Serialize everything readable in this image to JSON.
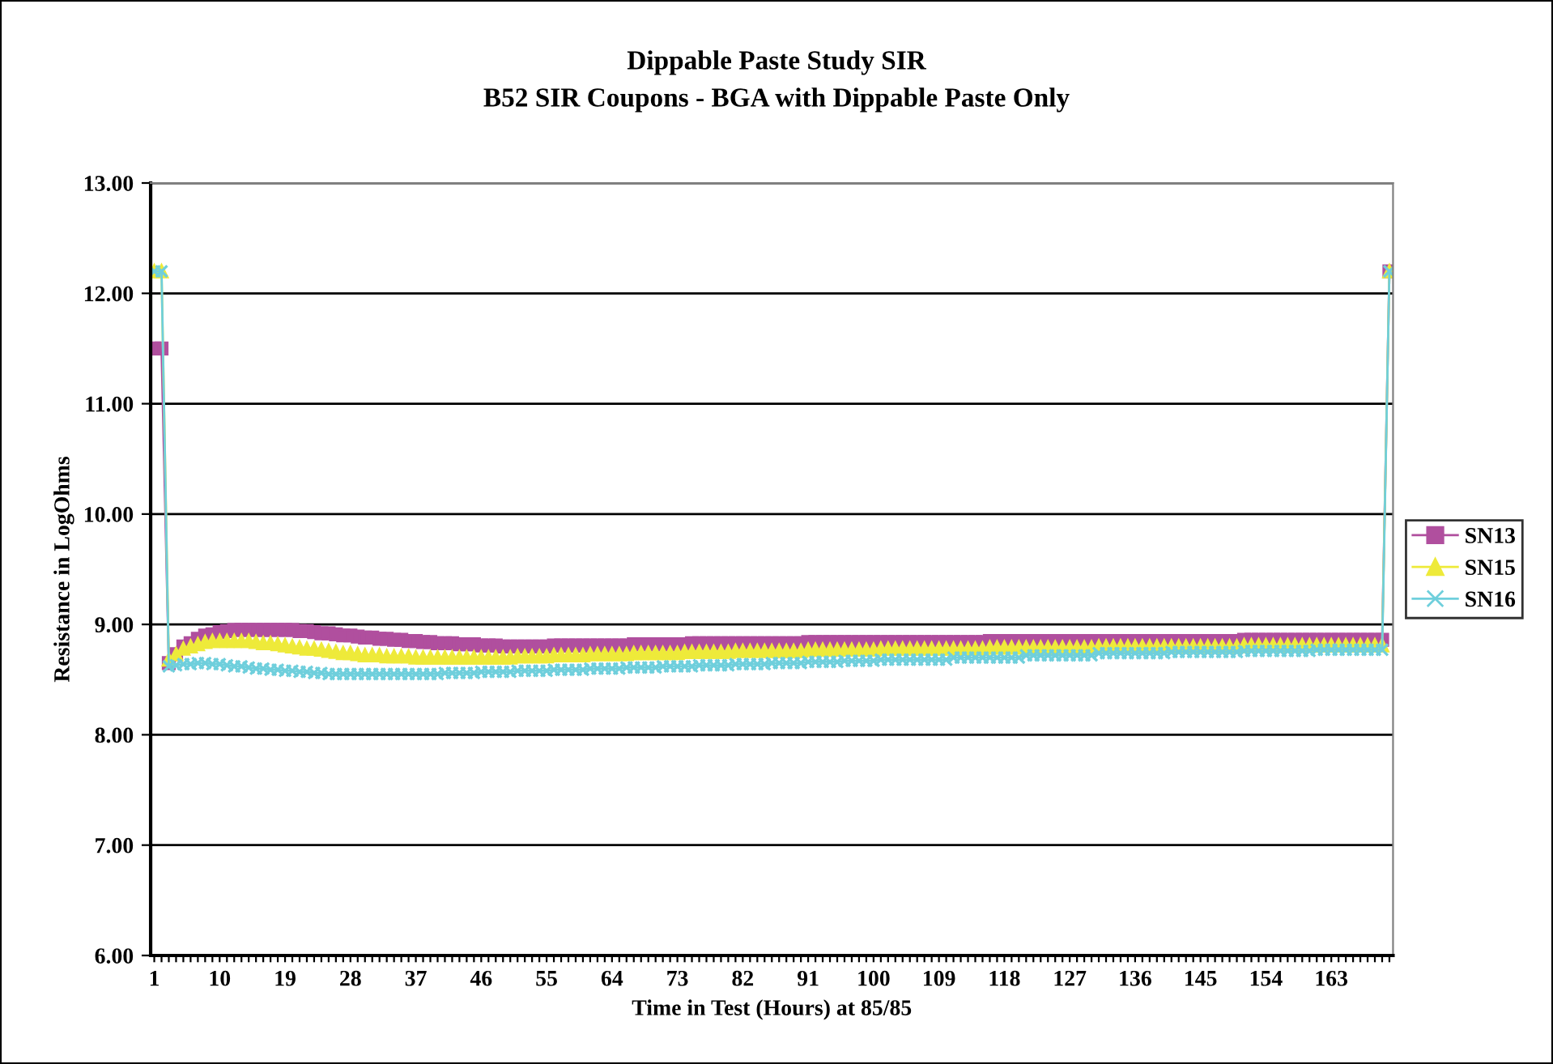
{
  "chart_data": {
    "type": "line",
    "title": "Dippable Paste Study SIR",
    "subtitle": "B52 SIR Coupons - BGA with Dippable Paste Only",
    "xlabel": "Time in Test (Hours) at 85/85",
    "ylabel": "Resistance in LogOhms",
    "categories": [
      "1",
      null,
      null,
      null,
      null,
      null,
      null,
      null,
      null,
      "10",
      null,
      null,
      null,
      null,
      null,
      null,
      null,
      null,
      "19",
      null,
      null,
      null,
      null,
      null,
      null,
      null,
      null,
      "28",
      null,
      null,
      null,
      null,
      null,
      null,
      null,
      null,
      "37",
      null,
      null,
      null,
      null,
      null,
      null,
      null,
      null,
      "46",
      null,
      null,
      null,
      null,
      null,
      null,
      null,
      null,
      "55",
      null,
      null,
      null,
      null,
      null,
      null,
      null,
      null,
      "64",
      null,
      null,
      null,
      null,
      null,
      null,
      null,
      null,
      "73",
      null,
      null,
      null,
      null,
      null,
      null,
      null,
      null,
      "82",
      null,
      null,
      null,
      null,
      null,
      null,
      null,
      null,
      "91",
      null,
      null,
      null,
      null,
      null,
      null,
      null,
      null,
      "100",
      null,
      null,
      null,
      null,
      null,
      null,
      null,
      null,
      "109",
      null,
      null,
      null,
      null,
      null,
      null,
      null,
      null,
      "118",
      null,
      null,
      null,
      null,
      null,
      null,
      null,
      null,
      "127",
      null,
      null,
      null,
      null,
      null,
      null,
      null,
      null,
      "136",
      null,
      null,
      null,
      null,
      null,
      null,
      null,
      null,
      "145",
      null,
      null,
      null,
      null,
      null,
      null,
      null,
      null,
      "154",
      null,
      null,
      null,
      null,
      null,
      null,
      null,
      null,
      "163",
      null,
      null,
      null,
      null,
      null,
      null,
      null,
      null
    ],
    "series": [
      {
        "name": "SN13",
        "color": "#b04f9e",
        "marker": "square",
        "values": [
          11.5,
          11.5,
          8.65,
          8.73,
          8.8,
          8.83,
          8.87,
          8.9,
          8.91,
          8.93,
          8.94,
          8.95,
          8.95,
          8.95,
          8.95,
          8.95,
          8.95,
          8.95,
          8.95,
          8.95,
          8.94,
          8.94,
          8.93,
          8.92,
          8.92,
          8.91,
          8.9,
          8.9,
          8.89,
          8.88,
          8.88,
          8.87,
          8.87,
          8.86,
          8.86,
          8.85,
          8.85,
          8.84,
          8.84,
          8.83,
          8.83,
          8.83,
          8.82,
          8.82,
          8.82,
          8.81,
          8.81,
          8.81,
          8.8,
          8.8,
          8.8,
          8.8,
          8.8,
          8.8,
          8.8,
          8.81,
          8.81,
          8.81,
          8.81,
          8.81,
          8.81,
          8.81,
          8.81,
          8.81,
          8.81,
          8.81,
          8.82,
          8.82,
          8.82,
          8.82,
          8.82,
          8.82,
          8.82,
          8.82,
          8.83,
          8.83,
          8.83,
          8.83,
          8.83,
          8.83,
          8.83,
          8.83,
          8.83,
          8.83,
          8.83,
          8.83,
          8.83,
          8.83,
          8.83,
          8.83,
          8.84,
          8.84,
          8.84,
          8.84,
          8.84,
          8.84,
          8.84,
          8.84,
          8.84,
          8.84,
          8.84,
          8.84,
          8.84,
          8.84,
          8.84,
          8.84,
          8.84,
          8.84,
          8.84,
          8.84,
          8.84,
          8.84,
          8.84,
          8.84,
          8.84,
          8.85,
          8.85,
          8.85,
          8.85,
          8.85,
          8.85,
          8.85,
          8.85,
          8.85,
          8.85,
          8.85,
          8.85,
          8.85,
          8.85,
          8.85,
          8.85,
          8.85,
          8.85,
          8.85,
          8.85,
          8.85,
          8.85,
          8.85,
          8.85,
          8.85,
          8.85,
          8.85,
          8.85,
          8.85,
          8.85,
          8.85,
          8.85,
          8.85,
          8.85,
          8.85,
          8.86,
          8.86,
          8.86,
          8.86,
          8.86,
          8.86,
          8.86,
          8.86,
          8.86,
          8.86,
          8.86,
          8.86,
          8.86,
          8.86,
          8.86,
          8.86,
          8.86,
          8.86,
          8.86,
          8.86,
          12.2
        ]
      },
      {
        "name": "SN15",
        "color": "#eeea3a",
        "marker": "triangle",
        "values": [
          12.2,
          12.2,
          8.68,
          8.73,
          8.78,
          8.8,
          8.82,
          8.84,
          8.85,
          8.85,
          8.85,
          8.85,
          8.85,
          8.85,
          8.84,
          8.83,
          8.83,
          8.82,
          8.81,
          8.8,
          8.79,
          8.78,
          8.78,
          8.77,
          8.76,
          8.75,
          8.74,
          8.74,
          8.73,
          8.72,
          8.72,
          8.72,
          8.71,
          8.71,
          8.71,
          8.71,
          8.7,
          8.7,
          8.7,
          8.7,
          8.7,
          8.7,
          8.7,
          8.7,
          8.7,
          8.7,
          8.7,
          8.7,
          8.7,
          8.7,
          8.71,
          8.71,
          8.71,
          8.71,
          8.71,
          8.72,
          8.72,
          8.72,
          8.72,
          8.72,
          8.73,
          8.73,
          8.73,
          8.73,
          8.73,
          8.73,
          8.74,
          8.74,
          8.74,
          8.74,
          8.74,
          8.74,
          8.74,
          8.75,
          8.75,
          8.75,
          8.75,
          8.75,
          8.75,
          8.75,
          8.76,
          8.76,
          8.76,
          8.76,
          8.76,
          8.76,
          8.76,
          8.76,
          8.76,
          8.76,
          8.77,
          8.77,
          8.77,
          8.77,
          8.77,
          8.77,
          8.77,
          8.77,
          8.77,
          8.77,
          8.78,
          8.78,
          8.78,
          8.78,
          8.78,
          8.78,
          8.78,
          8.78,
          8.78,
          8.78,
          8.78,
          8.78,
          8.78,
          8.78,
          8.78,
          8.79,
          8.79,
          8.79,
          8.79,
          8.79,
          8.79,
          8.79,
          8.79,
          8.79,
          8.79,
          8.79,
          8.79,
          8.79,
          8.79,
          8.79,
          8.8,
          8.8,
          8.8,
          8.8,
          8.8,
          8.8,
          8.8,
          8.8,
          8.8,
          8.8,
          8.8,
          8.8,
          8.8,
          8.8,
          8.8,
          8.8,
          8.8,
          8.8,
          8.8,
          8.8,
          8.81,
          8.81,
          8.81,
          8.81,
          8.81,
          8.81,
          8.81,
          8.81,
          8.81,
          8.81,
          8.81,
          8.81,
          8.81,
          8.81,
          8.81,
          8.81,
          8.81,
          8.81,
          8.81,
          8.81,
          12.2
        ]
      },
      {
        "name": "SN16",
        "color": "#6fcfdc",
        "marker": "cross",
        "values": [
          12.2,
          12.2,
          8.62,
          8.63,
          8.64,
          8.64,
          8.65,
          8.65,
          8.64,
          8.64,
          8.63,
          8.62,
          8.62,
          8.61,
          8.6,
          8.6,
          8.59,
          8.59,
          8.58,
          8.58,
          8.57,
          8.57,
          8.56,
          8.56,
          8.55,
          8.55,
          8.55,
          8.55,
          8.55,
          8.55,
          8.55,
          8.55,
          8.55,
          8.55,
          8.55,
          8.55,
          8.55,
          8.55,
          8.55,
          8.55,
          8.56,
          8.56,
          8.56,
          8.56,
          8.56,
          8.57,
          8.57,
          8.57,
          8.57,
          8.57,
          8.58,
          8.58,
          8.58,
          8.58,
          8.58,
          8.59,
          8.59,
          8.59,
          8.59,
          8.59,
          8.6,
          8.6,
          8.6,
          8.6,
          8.6,
          8.61,
          8.61,
          8.61,
          8.61,
          8.61,
          8.62,
          8.62,
          8.62,
          8.62,
          8.62,
          8.63,
          8.63,
          8.63,
          8.63,
          8.63,
          8.64,
          8.64,
          8.64,
          8.64,
          8.64,
          8.65,
          8.65,
          8.65,
          8.65,
          8.65,
          8.66,
          8.66,
          8.66,
          8.66,
          8.66,
          8.67,
          8.67,
          8.67,
          8.67,
          8.67,
          8.68,
          8.68,
          8.68,
          8.68,
          8.68,
          8.68,
          8.68,
          8.68,
          8.68,
          8.68,
          8.7,
          8.7,
          8.7,
          8.7,
          8.7,
          8.7,
          8.7,
          8.7,
          8.7,
          8.7,
          8.72,
          8.72,
          8.72,
          8.72,
          8.72,
          8.72,
          8.72,
          8.72,
          8.72,
          8.72,
          8.74,
          8.74,
          8.74,
          8.74,
          8.74,
          8.74,
          8.74,
          8.74,
          8.74,
          8.74,
          8.75,
          8.75,
          8.75,
          8.75,
          8.75,
          8.75,
          8.75,
          8.75,
          8.75,
          8.75,
          8.76,
          8.76,
          8.76,
          8.76,
          8.76,
          8.76,
          8.76,
          8.76,
          8.76,
          8.76,
          8.77,
          8.77,
          8.77,
          8.77,
          8.77,
          8.77,
          8.77,
          8.77,
          8.77,
          8.77,
          12.2
        ]
      }
    ],
    "ylim": [
      6,
      13
    ],
    "yticks": [
      {
        "value": 6,
        "label": "6.00"
      },
      {
        "value": 7,
        "label": "7.00"
      },
      {
        "value": 8,
        "label": "8.00"
      },
      {
        "value": 9,
        "label": "9.00"
      },
      {
        "value": 10,
        "label": "10.00"
      },
      {
        "value": 11,
        "label": "11.00"
      },
      {
        "value": 12,
        "label": "12.00"
      },
      {
        "value": 13,
        "label": "13.00"
      }
    ],
    "grid": "y",
    "legend": "right",
    "line_style": "solid"
  }
}
